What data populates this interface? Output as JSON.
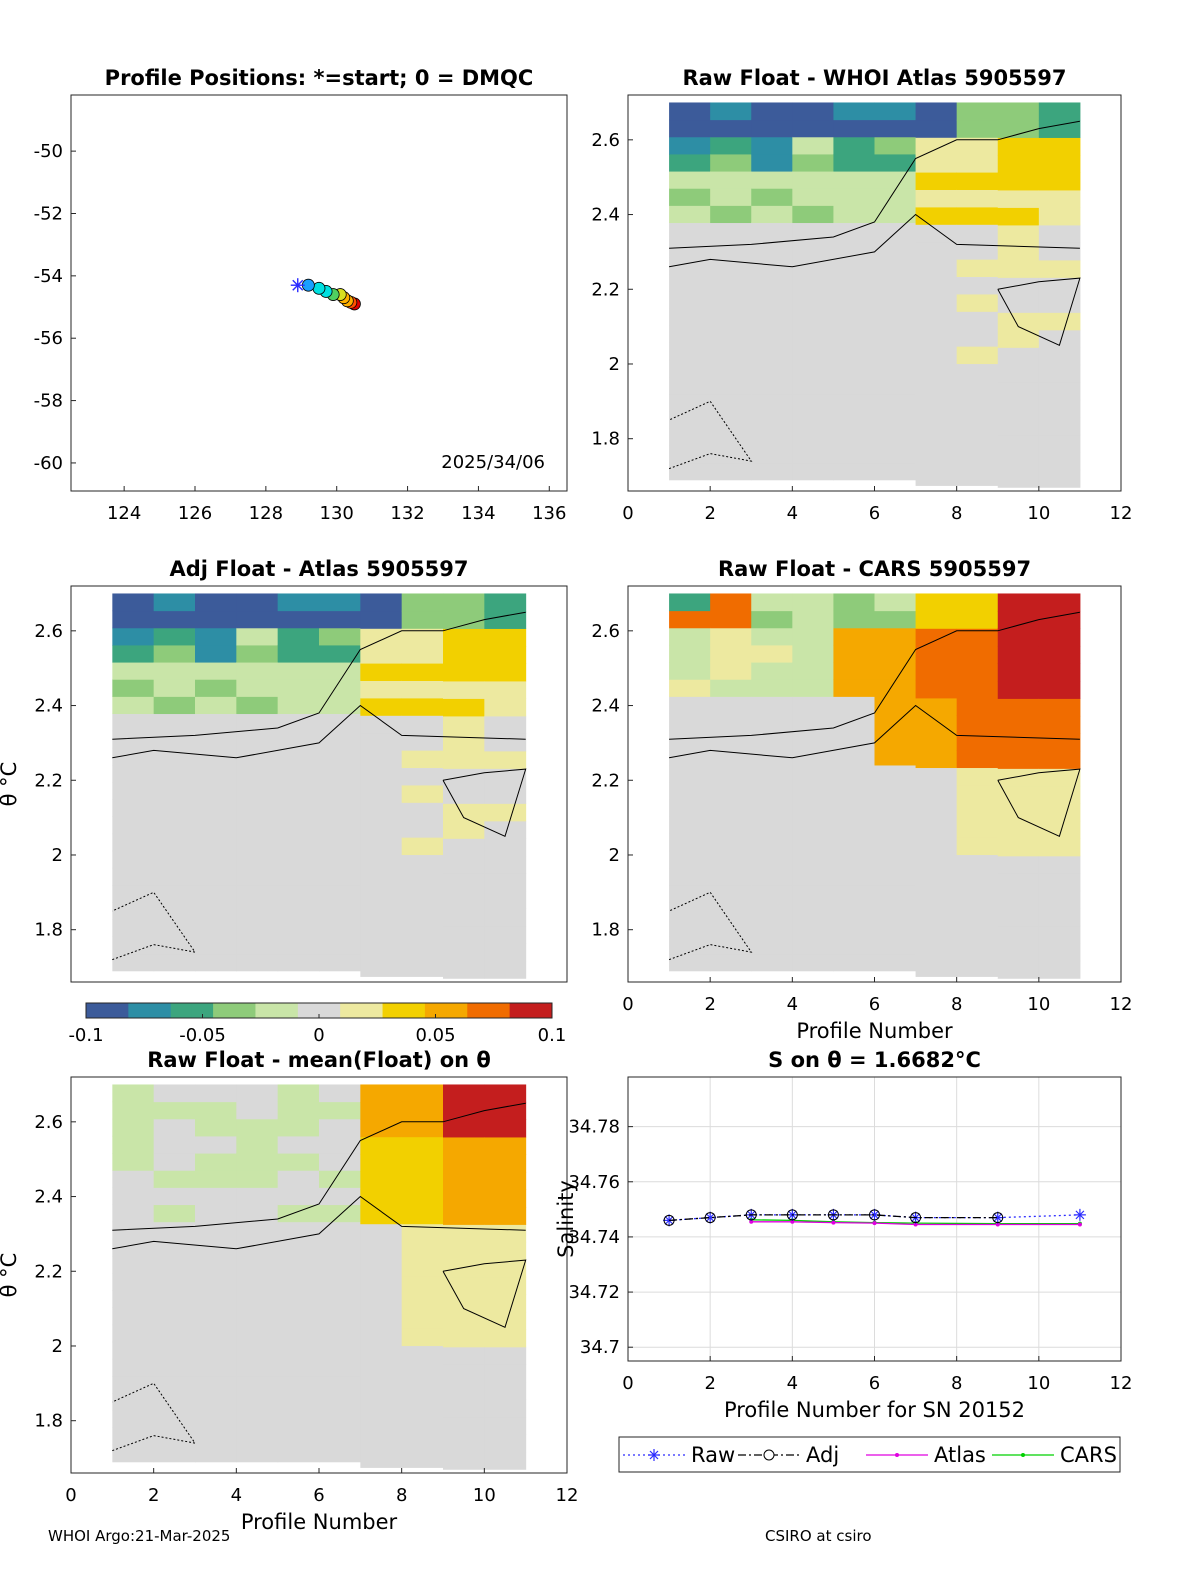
{
  "colors": {
    "scale": [
      "#3c5b9a",
      "#2d8ea5",
      "#3ca57e",
      "#8ecb7a",
      "#c9e5a8",
      "#d9d9d9",
      "#ede9a0",
      "#f2d000",
      "#f5a800",
      "#f06c00",
      "#c41e1e"
    ],
    "track": [
      "#1f3fff",
      "#1aa0ff",
      "#00e0e0",
      "#50d060",
      "#d8e020",
      "#ffb000",
      "#ff5000",
      "#e00000"
    ],
    "raw": "#2b2bff",
    "adj": "#000000",
    "atlas": "#e000e0",
    "cars": "#00d000"
  },
  "footer": {
    "left": "WHOI Argo:21-Mar-2025",
    "right": "CSIRO at csiro"
  },
  "chart_data": [
    {
      "type": "scatter",
      "title": "Profile Positions: *=start; 0 = DMQC",
      "annotation": "2025/34/06",
      "xlim": [
        122.5,
        136.5
      ],
      "ylim": [
        -60.9,
        -48.2
      ],
      "xticks": [
        124,
        126,
        128,
        130,
        132,
        134,
        136
      ],
      "yticks": [
        -50,
        -52,
        -54,
        -56,
        -58,
        -60
      ],
      "points": [
        {
          "x": 128.9,
          "y": -54.3
        },
        {
          "x": 129.2,
          "y": -54.3
        },
        {
          "x": 129.5,
          "y": -54.4
        },
        {
          "x": 129.7,
          "y": -54.5
        },
        {
          "x": 129.9,
          "y": -54.6
        },
        {
          "x": 130.1,
          "y": -54.6
        },
        {
          "x": 130.2,
          "y": -54.7
        },
        {
          "x": 130.3,
          "y": -54.8
        },
        {
          "x": 130.4,
          "y": -54.85
        },
        {
          "x": 130.5,
          "y": -54.9
        }
      ]
    },
    {
      "type": "heatmap",
      "title": "Raw Float - WHOI Atlas  5905597",
      "xlabel": "",
      "ylabel": "",
      "xlim": [
        0,
        12
      ],
      "ylim": [
        1.66,
        2.72
      ],
      "xticks": [
        0,
        2,
        4,
        6,
        8,
        10,
        12
      ],
      "yticks": [
        1.8,
        2,
        2.2,
        2.4,
        2.6
      ],
      "pattern": "atlas"
    },
    {
      "type": "heatmap",
      "title": "Adj Float - Atlas  5905597",
      "xlabel": "",
      "ylabel": "θ °C",
      "xlim": [
        0,
        12
      ],
      "ylim": [
        1.66,
        2.72
      ],
      "xticks": [],
      "yticks": [
        1.8,
        2,
        2.2,
        2.4,
        2.6
      ],
      "pattern": "atlas"
    },
    {
      "type": "heatmap",
      "title": "Raw Float - CARS  5905597",
      "xlabel": "Profile Number",
      "ylabel": "",
      "xlim": [
        0,
        12
      ],
      "ylim": [
        1.66,
        2.72
      ],
      "xticks": [
        0,
        2,
        4,
        6,
        8,
        10,
        12
      ],
      "yticks": [
        1.8,
        2,
        2.2,
        2.4,
        2.6
      ],
      "pattern": "cars"
    },
    {
      "type": "heatmap",
      "title": "Raw Float - mean(Float) on θ",
      "xlabel": "Profile Number",
      "ylabel": "θ °C",
      "xlim": [
        0,
        12
      ],
      "ylim": [
        1.66,
        2.72
      ],
      "xticks": [
        0,
        2,
        4,
        6,
        8,
        10,
        12
      ],
      "yticks": [
        1.8,
        2,
        2.2,
        2.4,
        2.6
      ],
      "pattern": "mean"
    },
    {
      "type": "line",
      "title": "S on θ = 1.6682°C",
      "xlabel": "Profile Number for SN 20152",
      "ylabel": "Salinity",
      "xlim": [
        0,
        12
      ],
      "ylim": [
        34.695,
        34.798
      ],
      "xticks": [
        0,
        2,
        4,
        6,
        8,
        10,
        12
      ],
      "yticks": [
        34.7,
        34.72,
        34.74,
        34.76,
        34.78
      ],
      "grid": true,
      "legend": [
        "Raw",
        "Adj",
        "Atlas",
        "CARS"
      ],
      "x": [
        1,
        2,
        3,
        4,
        5,
        6,
        7,
        9,
        11
      ],
      "series": [
        {
          "name": "Raw",
          "values": [
            34.746,
            34.747,
            34.748,
            34.748,
            34.748,
            34.748,
            34.747,
            34.747,
            34.748
          ]
        },
        {
          "name": "Adj",
          "values": [
            34.746,
            34.747,
            34.748,
            34.748,
            34.748,
            34.748,
            34.747,
            34.747,
            null
          ]
        },
        {
          "name": "Atlas",
          "values": [
            null,
            null,
            34.7455,
            34.7455,
            34.7452,
            34.745,
            34.7445,
            34.7445,
            34.7445
          ]
        },
        {
          "name": "CARS",
          "values": [
            null,
            null,
            34.7462,
            34.746,
            34.7455,
            34.7452,
            34.745,
            34.7448,
            34.7448
          ]
        }
      ]
    }
  ],
  "colorbar": {
    "ticks": [
      "-0.1",
      "-0.05",
      "0",
      "0.05",
      "0.1"
    ]
  }
}
